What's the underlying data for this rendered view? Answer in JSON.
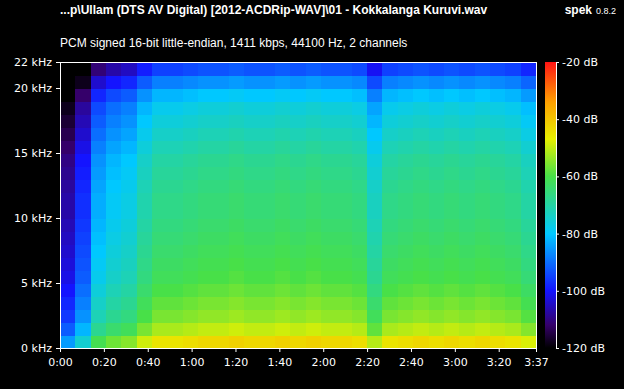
{
  "chart_data": {
    "type": "heatmap",
    "title": "...p\\Ullam (DTS AV Digital) [2012-ACDRip-WAV]\\01 - Kokkalanga Kuruvi.wav",
    "subtitle": "PCM signed 16-bit little-endian, 1411 kbps, 44100 Hz, 2 channels",
    "app_name": "spek",
    "app_version": "0.8.2",
    "x": [
      0,
      7,
      14,
      21,
      28,
      35,
      42,
      49,
      56,
      63,
      70,
      77,
      84,
      91,
      98,
      105,
      112,
      119,
      126,
      133,
      140,
      147,
      154,
      161,
      168,
      175,
      182,
      189,
      196,
      203,
      210,
      217
    ],
    "y": [
      0,
      1,
      2,
      3,
      4,
      5,
      6,
      7,
      8,
      9,
      10,
      11,
      12,
      13,
      14,
      15,
      16,
      17,
      18,
      19,
      20,
      21,
      22
    ],
    "values": [
      [
        -85,
        -92,
        -96,
        -98,
        -100,
        -102,
        -103,
        -104,
        -105,
        -106,
        -107,
        -107,
        -108,
        -109,
        -110,
        -112,
        -114,
        -116,
        -118,
        -120,
        -120,
        -120
      ],
      [
        -75,
        -82,
        -86,
        -88,
        -90,
        -92,
        -93,
        -94,
        -95,
        -96,
        -97,
        -97,
        -98,
        -99,
        -100,
        -102,
        -104,
        -106,
        -108,
        -112,
        -118,
        -120
      ],
      [
        -61,
        -68,
        -72,
        -74,
        -76,
        -78,
        -79,
        -80,
        -81,
        -82,
        -83,
        -83,
        -84,
        -85,
        -86,
        -88,
        -90,
        -92,
        -94,
        -98,
        -104,
        -111
      ],
      [
        -57,
        -64,
        -68,
        -70,
        -72,
        -74,
        -75,
        -76,
        -77,
        -78,
        -79,
        -79,
        -80,
        -81,
        -82,
        -84,
        -86,
        -88,
        -90,
        -94,
        -100,
        -107
      ],
      [
        -55,
        -62,
        -66,
        -68,
        -70,
        -72,
        -73,
        -74,
        -75,
        -76,
        -77,
        -77,
        -78,
        -79,
        -80,
        -82,
        -84,
        -86,
        -88,
        -92,
        -98,
        -105
      ],
      [
        -49,
        -56,
        -60,
        -62,
        -64,
        -66,
        -67,
        -68,
        -69,
        -70,
        -71,
        -71,
        -72,
        -73,
        -74,
        -76,
        -78,
        -80,
        -82,
        -86,
        -92,
        -99
      ],
      [
        -45,
        -52,
        -56,
        -58,
        -60,
        -62,
        -63,
        -64,
        -65,
        -66,
        -67,
        -67,
        -68,
        -69,
        -70,
        -72,
        -74,
        -76,
        -78,
        -82,
        -88,
        -95
      ],
      [
        -45,
        -52,
        -56,
        -58,
        -60,
        -62,
        -63,
        -64,
        -65,
        -66,
        -67,
        -67,
        -68,
        -69,
        -70,
        -72,
        -74,
        -76,
        -78,
        -82,
        -88,
        -95
      ],
      [
        -44,
        -51,
        -55,
        -57,
        -59,
        -61,
        -62,
        -63,
        -64,
        -65,
        -66,
        -66,
        -67,
        -68,
        -69,
        -71,
        -73,
        -75,
        -77,
        -81,
        -87,
        -94
      ],
      [
        -43,
        -50,
        -54,
        -56,
        -58,
        -60,
        -61,
        -62,
        -63,
        -64,
        -65,
        -65,
        -66,
        -67,
        -68,
        -70,
        -72,
        -74,
        -76,
        -80,
        -86,
        -93
      ],
      [
        -43,
        -50,
        -54,
        -56,
        -58,
        -60,
        -61,
        -62,
        -63,
        -64,
        -65,
        -65,
        -66,
        -67,
        -68,
        -70,
        -72,
        -74,
        -76,
        -80,
        -86,
        -93
      ],
      [
        -42,
        -49,
        -53,
        -55,
        -57,
        -59,
        -60,
        -61,
        -62,
        -63,
        -64,
        -64,
        -65,
        -66,
        -67,
        -69,
        -71,
        -73,
        -75,
        -79,
        -85,
        -92
      ],
      [
        -43,
        -50,
        -54,
        -56,
        -58,
        -60,
        -61,
        -62,
        -63,
        -64,
        -65,
        -65,
        -66,
        -67,
        -68,
        -70,
        -72,
        -74,
        -76,
        -80,
        -86,
        -93
      ],
      [
        -43,
        -50,
        -54,
        -56,
        -58,
        -60,
        -61,
        -62,
        -63,
        -64,
        -65,
        -65,
        -66,
        -67,
        -68,
        -70,
        -72,
        -74,
        -76,
        -80,
        -86,
        -93
      ],
      [
        -42,
        -49,
        -53,
        -55,
        -57,
        -59,
        -60,
        -61,
        -62,
        -63,
        -64,
        -64,
        -65,
        -66,
        -67,
        -69,
        -71,
        -73,
        -75,
        -79,
        -85,
        -92
      ],
      [
        -43,
        -50,
        -54,
        -56,
        -58,
        -60,
        -61,
        -62,
        -63,
        -64,
        -65,
        -65,
        -66,
        -67,
        -68,
        -70,
        -72,
        -74,
        -76,
        -80,
        -86,
        -93
      ],
      [
        -42,
        -49,
        -53,
        -55,
        -57,
        -59,
        -60,
        -61,
        -62,
        -63,
        -64,
        -64,
        -65,
        -66,
        -67,
        -69,
        -71,
        -73,
        -75,
        -79,
        -85,
        -92
      ],
      [
        -43,
        -50,
        -54,
        -56,
        -58,
        -60,
        -61,
        -62,
        -63,
        -64,
        -65,
        -65,
        -66,
        -67,
        -68,
        -70,
        -72,
        -74,
        -76,
        -80,
        -86,
        -93
      ],
      [
        -43,
        -50,
        -54,
        -56,
        -58,
        -60,
        -61,
        -62,
        -63,
        -64,
        -65,
        -65,
        -66,
        -67,
        -68,
        -70,
        -72,
        -74,
        -76,
        -80,
        -86,
        -93
      ],
      [
        -44,
        -51,
        -55,
        -57,
        -59,
        -61,
        -62,
        -63,
        -64,
        -65,
        -66,
        -66,
        -67,
        -68,
        -69,
        -71,
        -73,
        -75,
        -77,
        -81,
        -87,
        -94
      ],
      [
        -51,
        -58,
        -62,
        -64,
        -66,
        -68,
        -69,
        -70,
        -71,
        -72,
        -73,
        -73,
        -74,
        -75,
        -76,
        -78,
        -80,
        -82,
        -84,
        -88,
        -94,
        -101
      ],
      [
        -45,
        -52,
        -56,
        -58,
        -60,
        -62,
        -63,
        -64,
        -65,
        -66,
        -67,
        -67,
        -68,
        -69,
        -70,
        -72,
        -74,
        -76,
        -78,
        -82,
        -88,
        -95
      ],
      [
        -44,
        -51,
        -55,
        -57,
        -59,
        -61,
        -62,
        -63,
        -64,
        -65,
        -66,
        -66,
        -67,
        -68,
        -69,
        -71,
        -73,
        -75,
        -77,
        -81,
        -87,
        -94
      ],
      [
        -43,
        -50,
        -54,
        -56,
        -58,
        -60,
        -61,
        -62,
        -63,
        -64,
        -65,
        -65,
        -66,
        -67,
        -68,
        -70,
        -72,
        -74,
        -76,
        -80,
        -86,
        -93
      ],
      [
        -44,
        -51,
        -55,
        -57,
        -59,
        -61,
        -62,
        -63,
        -64,
        -65,
        -66,
        -66,
        -67,
        -68,
        -69,
        -71,
        -73,
        -75,
        -77,
        -81,
        -87,
        -94
      ],
      [
        -43,
        -50,
        -54,
        -56,
        -58,
        -60,
        -61,
        -62,
        -63,
        -64,
        -65,
        -65,
        -66,
        -67,
        -68,
        -70,
        -72,
        -74,
        -76,
        -80,
        -86,
        -93
      ],
      [
        -44,
        -51,
        -55,
        -57,
        -59,
        -61,
        -62,
        -63,
        -64,
        -65,
        -66,
        -66,
        -67,
        -68,
        -69,
        -71,
        -73,
        -75,
        -77,
        -81,
        -87,
        -94
      ],
      [
        -43,
        -50,
        -54,
        -56,
        -58,
        -60,
        -61,
        -62,
        -63,
        -64,
        -65,
        -65,
        -66,
        -67,
        -68,
        -70,
        -72,
        -74,
        -76,
        -80,
        -86,
        -93
      ],
      [
        -44,
        -51,
        -55,
        -57,
        -59,
        -61,
        -62,
        -63,
        -64,
        -65,
        -66,
        -66,
        -67,
        -68,
        -69,
        -71,
        -73,
        -75,
        -77,
        -81,
        -87,
        -94
      ],
      [
        -45,
        -52,
        -56,
        -58,
        -60,
        -62,
        -63,
        -64,
        -65,
        -66,
        -67,
        -67,
        -68,
        -69,
        -70,
        -72,
        -74,
        -76,
        -78,
        -82,
        -88,
        -95
      ],
      [
        -48,
        -55,
        -59,
        -61,
        -63,
        -65,
        -66,
        -67,
        -68,
        -69,
        -70,
        -70,
        -71,
        -72,
        -73,
        -75,
        -77,
        -79,
        -81,
        -85,
        -91,
        -98
      ]
    ],
    "xlim": [
      0,
      217
    ],
    "ylim": [
      0,
      22
    ],
    "xticks": [
      {
        "value": 0,
        "label": "0:00"
      },
      {
        "value": 20,
        "label": "0:20"
      },
      {
        "value": 40,
        "label": "0:40"
      },
      {
        "value": 60,
        "label": "1:00"
      },
      {
        "value": 80,
        "label": "1:20"
      },
      {
        "value": 100,
        "label": "1:40"
      },
      {
        "value": 120,
        "label": "2:00"
      },
      {
        "value": 140,
        "label": "2:20"
      },
      {
        "value": 160,
        "label": "2:40"
      },
      {
        "value": 180,
        "label": "3:00"
      },
      {
        "value": 200,
        "label": "3:20"
      },
      {
        "value": 217,
        "label": "3:37"
      }
    ],
    "yticks": [
      {
        "value": 0,
        "label": "0 kHz"
      },
      {
        "value": 5,
        "label": "5 kHz"
      },
      {
        "value": 10,
        "label": "10 kHz"
      },
      {
        "value": 15,
        "label": "15 kHz"
      },
      {
        "value": 20,
        "label": "20 kHz"
      },
      {
        "value": 22,
        "label": "22 kHz"
      }
    ],
    "zlim": [
      -120,
      -20
    ],
    "zticks": [
      {
        "value": -20,
        "label": "-20 dB"
      },
      {
        "value": -40,
        "label": "-40 dB"
      },
      {
        "value": -60,
        "label": "-60 dB"
      },
      {
        "value": -80,
        "label": "-80 dB"
      },
      {
        "value": -100,
        "label": "-100 dB"
      },
      {
        "value": -120,
        "label": "-120 dB"
      }
    ]
  }
}
